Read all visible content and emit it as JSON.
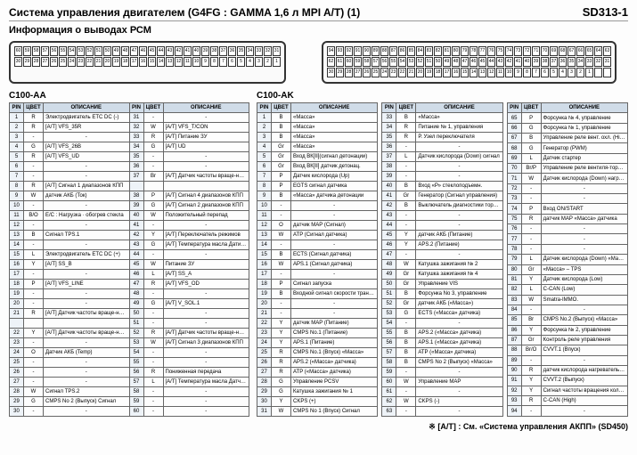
{
  "header": {
    "title": "Система управления двигателем (G4FG : GAMMA 1,6 л MPI A/T) (1)",
    "sheet": "SD313-1",
    "subtitle": "Информация о выводах РСМ"
  },
  "left": {
    "label": "C100-AA",
    "cols": [
      "PIN",
      "ЦВЕТ",
      "ОПИСАНИЕ",
      "PIN",
      "ЦВЕТ",
      "ОПИСАНИЕ"
    ],
    "rows": [
      [
        "1",
        "R",
        "Электродвигатель ETC DC (-)",
        "31",
        "-",
        "-"
      ],
      [
        "2",
        "R",
        "[А/Т] VFS_35R",
        "32",
        "W",
        "[А/Т] VFS_T/CON"
      ],
      [
        "3",
        "-",
        "-",
        "33",
        "R",
        "[А/Т] Питание ЗУ"
      ],
      [
        "4",
        "G",
        "[А/Т] VFS_26B",
        "34",
        "G",
        "[А/Т] UD"
      ],
      [
        "5",
        "R",
        "[А/Т] VFS_UD",
        "35",
        "-",
        "-"
      ],
      [
        "6",
        "-",
        "-",
        "36",
        "-",
        "-"
      ],
      [
        "7",
        "-",
        "-",
        "37",
        "Br",
        "[А/Т] Датчик частоты враще-ния вторичного вала–Сигнал"
      ],
      [
        "8",
        "R",
        "[А/Т] Сигнал 1 диапазонов КПП",
        "",
        "",
        ""
      ],
      [
        "9",
        "W",
        "датчик АКБ (Ток)",
        "38",
        "P",
        "[А/Т] Сигнал 4 диапазонов КПП"
      ],
      [
        "10",
        "-",
        "-",
        "39",
        "G",
        "[А/Т] Сигнал 2 диапазонов КПП"
      ],
      [
        "11",
        "B/O",
        "Е/С : Нагрузка · обогрев стекла",
        "40",
        "W",
        "Положительный перепад"
      ],
      [
        "12",
        "-",
        "-",
        "41",
        "-",
        "-"
      ],
      [
        "13",
        "B",
        "Сигнал TPS.1",
        "42",
        "Y",
        "[А/Т] Переключатель режимов"
      ],
      [
        "14",
        "-",
        "-",
        "43",
        "G",
        "[А/Т] Температура масла Датик (+)"
      ],
      [
        "15",
        "L",
        "Электродвигатель ETC DC (+)",
        "44",
        "-",
        "-"
      ],
      [
        "16",
        "Y",
        "[А/Т] SS_B",
        "45",
        "W",
        "Питание ЗУ"
      ],
      [
        "17",
        "-",
        "-",
        "46",
        "L",
        "[А/Т] SS_A"
      ],
      [
        "18",
        "P",
        "[А/Т] VFS_LINE",
        "47",
        "R",
        "[А/Т] VFS_OD"
      ],
      [
        "19",
        "-",
        "-",
        "48",
        "-",
        "-"
      ],
      [
        "20",
        "-",
        "-",
        "49",
        "G",
        "[А/Т] V_SOL.1"
      ],
      [
        "21",
        "R",
        "[А/Т] Датчик частоты враще-ния вторичного вала–Питание",
        "50",
        "-",
        "-"
      ],
      [
        "",
        "",
        "",
        "51",
        "-",
        "-"
      ],
      [
        "22",
        "Y",
        "[А/Т] Датчик частоты враще-ния вторичного вала (Сигнал)",
        "52",
        "R",
        "[А/Т] Датчик частоты враще-ния первичного вала (Сигнал)"
      ],
      [
        "23",
        "-",
        "-",
        "53",
        "W",
        "[А/Т] Сигнал 3 диапазонов КПП"
      ],
      [
        "24",
        "O",
        "Датчик АКБ (Temp)",
        "54",
        "-",
        "-"
      ],
      [
        "25",
        "-",
        "-",
        "55",
        "-",
        "-"
      ],
      [
        "26",
        "-",
        "-",
        "56",
        "R",
        "Пониженная передача"
      ],
      [
        "27",
        "-",
        "-",
        "57",
        "L",
        "[А/Т] Температура масла Датчик (-)"
      ],
      [
        "28",
        "W",
        "Сигнал TPS.2",
        "58",
        "-",
        "-"
      ],
      [
        "29",
        "G",
        "CMPS No 2 (Выпуск) Сигнал",
        "59",
        "-",
        "-"
      ],
      [
        "30",
        "-",
        "-",
        "60",
        "-",
        "-"
      ]
    ]
  },
  "right": {
    "label": "C100-AK",
    "cols": [
      "PIN",
      "ЦВЕТ",
      "ОПИСАНИЕ"
    ],
    "group1": [
      [
        "1",
        "B",
        "«Масса»"
      ],
      [
        "2",
        "B",
        "«Масса»"
      ],
      [
        "3",
        "B",
        "«Масса»"
      ],
      [
        "4",
        "Gr",
        "«Масса»"
      ],
      [
        "5",
        "Gr",
        "Вход ВК[II](сигнал детонации)"
      ],
      [
        "6",
        "Gr",
        "Вход ВК[II] датчик детонац."
      ],
      [
        "7",
        "P",
        "Датчик кислорода (Up)"
      ],
      [
        "8",
        "P",
        "EGTS сигнал датчика"
      ],
      [
        "9",
        "B",
        "«Масса» датчика детонации"
      ],
      [
        "10",
        "-",
        "-"
      ],
      [
        "11",
        "-",
        "-"
      ],
      [
        "12",
        "O",
        "датчик МАР (Сигнал)"
      ],
      [
        "13",
        "W",
        "ATP (Сигнал датчика)"
      ],
      [
        "14",
        "-",
        "-"
      ],
      [
        "15",
        "B",
        "ECTS (Сигнал датчика)"
      ],
      [
        "16",
        "W",
        "APS.1 (Сигнал датчика)"
      ],
      [
        "17",
        "-",
        "-"
      ],
      [
        "18",
        "P",
        "Сигнал запуска"
      ],
      [
        "19",
        "B",
        "Входной сигнал скорости транспортного средства"
      ],
      [
        "20",
        "-",
        "-"
      ],
      [
        "21",
        "-",
        "-"
      ],
      [
        "22",
        "Y",
        "датчик МАР (Питание)"
      ],
      [
        "23",
        "Y",
        "CMPS No.1 (Питание)"
      ],
      [
        "24",
        "Y",
        "APS.1 (Питание)"
      ],
      [
        "25",
        "R",
        "CMPS No.1 (Впуск) «Масса»"
      ],
      [
        "26",
        "R",
        "APS.2 («Масса» датчика)"
      ],
      [
        "27",
        "R",
        "ATP («Масса» датчика)"
      ],
      [
        "28",
        "G",
        "Управление PCSV"
      ],
      [
        "29",
        "G",
        "Катушка зажигания № 1"
      ],
      [
        "30",
        "Y",
        "CKPS (+)"
      ],
      [
        "31",
        "W",
        "CMPS No 1 (Впуск) Сигнал"
      ]
    ],
    "group2": [
      [
        "33",
        "B",
        "«Масса»"
      ],
      [
        "34",
        "R",
        "Питание № 1, управления"
      ],
      [
        "35",
        "R",
        "Р. Узел переключателя"
      ],
      [
        "36",
        "-",
        "-"
      ],
      [
        "37",
        "L",
        "Датчик кислорода (Down) сигнал"
      ],
      [
        "38",
        "-",
        "-"
      ],
      [
        "39",
        "-",
        "-"
      ],
      [
        "40",
        "B",
        "Вход «Р» стеклоподъемн."
      ],
      [
        "41",
        "Gr",
        "Генератор (Сигнал управления)"
      ],
      [
        "42",
        "B",
        "Выключатель диагностики тормозов"
      ],
      [
        "43",
        "-",
        "-"
      ],
      [
        "44",
        "-",
        "-"
      ],
      [
        "45",
        "Y",
        "датчик АКБ (Питание)"
      ],
      [
        "46",
        "Y",
        "APS.2 (Питание)"
      ],
      [
        "47",
        "-",
        "-"
      ],
      [
        "48",
        "W",
        "Катушка зажигания № 2"
      ],
      [
        "49",
        "Gr",
        "Катушка зажигания № 4"
      ],
      [
        "50",
        "Gr",
        "Управление VIS"
      ],
      [
        "51",
        "B",
        "Форсунка No 3, управление"
      ],
      [
        "52",
        "Gr",
        "датчик АКБ («Масса»)"
      ],
      [
        "53",
        "G",
        "ECTS («Масса» датчика)"
      ],
      [
        "54",
        "-",
        "-"
      ],
      [
        "55",
        "B",
        "APS.2 («Масса» датчика)"
      ],
      [
        "56",
        "B",
        "APS.1 («Масса» датчика)"
      ],
      [
        "57",
        "B",
        "ATP («Масса» датчика)"
      ],
      [
        "58",
        "B",
        "CMPS No 2 (Выпуск) «Масса»"
      ],
      [
        "59",
        "-",
        "-"
      ],
      [
        "60",
        "W",
        "Управление МАР"
      ],
      [
        "61",
        "-",
        "-"
      ],
      [
        "62",
        "W",
        "CKPS (-)"
      ],
      [
        "63",
        "-",
        "-"
      ]
    ],
    "group3": [
      [
        "65",
        "P",
        "Форсунка № 4, управление"
      ],
      [
        "66",
        "G",
        "Форсунка № 1, управление"
      ],
      [
        "67",
        "B",
        "Управление реле вент. охл. (High)"
      ],
      [
        "68",
        "G",
        "Генератор (PWM)"
      ],
      [
        "69",
        "L",
        "Датчик стартер"
      ],
      [
        "70",
        "Br/P",
        "Управление реле вентиля-тора охлаждения (Low)"
      ],
      [
        "71",
        "W",
        "Датчик кислорода (Down) нагревательный элемент"
      ],
      [
        "72",
        "-",
        "-"
      ],
      [
        "73",
        "-",
        "-"
      ],
      [
        "74",
        "P",
        "Вход ON/START"
      ],
      [
        "75",
        "R",
        "датчик МАР «Масса» датчика"
      ],
      [
        "76",
        "-",
        "-"
      ],
      [
        "77",
        "-",
        "-"
      ],
      [
        "78",
        "-",
        "-"
      ],
      [
        "79",
        "L",
        "Датчик кислорода (Down) «Масса»"
      ],
      [
        "80",
        "Gr",
        "«Масса» – TPS"
      ],
      [
        "81",
        "Y",
        "Датчик кислорода (Low)"
      ],
      [
        "82",
        "L",
        "C-CAN (Low)"
      ],
      [
        "83",
        "W",
        "Smatra-IMMO."
      ],
      [
        "84",
        "-",
        "-"
      ],
      [
        "85",
        "Br",
        "CMPS No.2 (Выпуск) «Масса»"
      ],
      [
        "86",
        "Y",
        "Форсунка № 2, управление"
      ],
      [
        "87",
        "Gr",
        "Контроль реле управления"
      ],
      [
        "88",
        "Br/O",
        "CVVT.1 (Впуск)"
      ],
      [
        "89",
        "-",
        "-"
      ],
      [
        "90",
        "R",
        "датчик кислорода нагревательного элемента масла"
      ],
      [
        "91",
        "Y",
        "CVVT.2 (Выпуск)"
      ],
      [
        "92",
        "Y",
        "Сигнал частоты вращения коленчатого вала"
      ],
      [
        "93",
        "R",
        "C-CAN (High)"
      ],
      [
        "94",
        "-",
        "-"
      ]
    ]
  },
  "footnote": "※ [А/Т] : См. «Система управления АКПП» (SD450)"
}
